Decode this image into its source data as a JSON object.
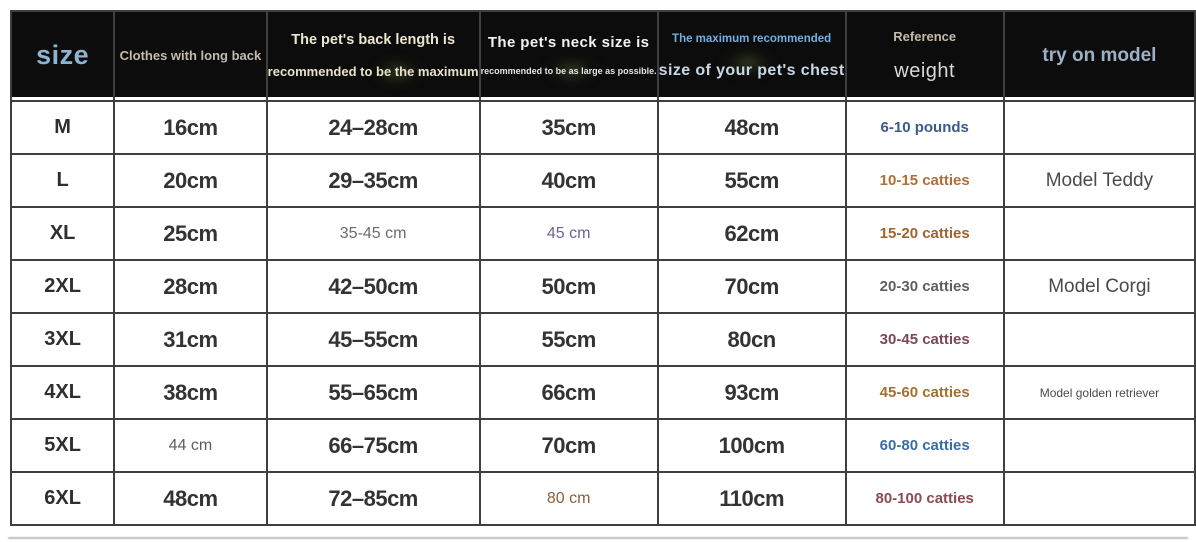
{
  "page": {
    "background": "#ffffff",
    "grid_line_color": "#3f3f3f",
    "header_background": "#0c0c0c"
  },
  "chart_data": {
    "type": "table",
    "title": "Pet clothing size chart",
    "columns": [
      "size",
      "Clothes with long back",
      "The pet's back length is recommended to be the maximum",
      "The pet's neck size is recommended to be as large as possible.",
      "The maximum recommended size of your pet's chest",
      "Reference weight",
      "try on model"
    ],
    "rows": [
      [
        "M",
        "16cm",
        "24–28cm",
        "35cm",
        "48cm",
        "6-10 pounds",
        ""
      ],
      [
        "L",
        "20cm",
        "29–35cm",
        "40cm",
        "55cm",
        "10-15 catties",
        "Model Teddy"
      ],
      [
        "XL",
        "25cm",
        "35-45 cm",
        "45 cm",
        "62cm",
        "15-20 catties",
        ""
      ],
      [
        "2XL",
        "28cm",
        "42–50cm",
        "50cm",
        "70cm",
        "20-30 catties",
        "Model Corgi"
      ],
      [
        "3XL",
        "31cm",
        "45–55cm",
        "55cm",
        "80cn",
        "30-45 catties",
        ""
      ],
      [
        "4XL",
        "38cm",
        "55–65cm",
        "66cm",
        "93cm",
        "45-60 catties",
        "Model golden retriever"
      ],
      [
        "5XL",
        "44 cm",
        "66–75cm",
        "70cm",
        "100cm",
        "60-80 catties",
        ""
      ],
      [
        "6XL",
        "48cm",
        "72–85cm",
        "80 cm",
        "110cm",
        "80-100 catties",
        ""
      ]
    ]
  },
  "table": {
    "columns": [
      {
        "id": "size",
        "lines": [
          {
            "text": "size",
            "cls": "h-size"
          }
        ]
      },
      {
        "id": "long-back",
        "lines": [
          {
            "text": "Clothes with long back",
            "cls": "h-tan"
          }
        ]
      },
      {
        "id": "back-length",
        "smudge": [
          62,
          68
        ],
        "lines": [
          {
            "text": "The pet's back length is",
            "cls": "h-cream"
          },
          {
            "text": "recommended to be the maximum",
            "cls": "h-cream-b"
          }
        ]
      },
      {
        "id": "neck",
        "smudge": [
          52,
          66
        ],
        "lines": [
          {
            "text": "The pet's neck size is",
            "cls": "h-white"
          },
          {
            "text": "recommended to be as large as possible.",
            "cls": "h-white-tiny"
          }
        ]
      },
      {
        "id": "chest",
        "smudge": [
          48,
          58
        ],
        "lines": [
          {
            "text": "The maximum recommended",
            "cls": "h-blue-sm"
          },
          {
            "text": "size of your pet's chest",
            "cls": "h-bluegrey"
          }
        ]
      },
      {
        "id": "weight",
        "lines": [
          {
            "text": "Reference",
            "cls": "h-tan"
          },
          {
            "text": "weight",
            "cls": "h-grey-big"
          }
        ]
      },
      {
        "id": "model",
        "lines": [
          {
            "text": "try on model",
            "cls": "h-model"
          }
        ]
      }
    ],
    "rows": [
      {
        "cells": [
          {
            "text": "M",
            "variant": "size"
          },
          {
            "text": "16cm",
            "variant": "big"
          },
          {
            "text": "24–28cm",
            "variant": "big"
          },
          {
            "text": "35cm",
            "variant": "big"
          },
          {
            "text": "48cm",
            "variant": "big"
          },
          {
            "text": "6-10 pounds",
            "variant": "weight",
            "color": "#3e5a8c"
          },
          {
            "text": "",
            "variant": "model"
          }
        ]
      },
      {
        "cells": [
          {
            "text": "L",
            "variant": "size"
          },
          {
            "text": "20cm",
            "variant": "big"
          },
          {
            "text": "29–35cm",
            "variant": "big"
          },
          {
            "text": "40cm",
            "variant": "big"
          },
          {
            "text": "55cm",
            "variant": "big"
          },
          {
            "text": "10-15 catties",
            "variant": "weight",
            "color": "#b06f35"
          },
          {
            "text": "Model Teddy",
            "variant": "model"
          }
        ]
      },
      {
        "cells": [
          {
            "text": "XL",
            "variant": "size"
          },
          {
            "text": "25cm",
            "variant": "big"
          },
          {
            "text": "35-45 cm",
            "variant": "small",
            "color": "#6b6b6b"
          },
          {
            "text": "45 cm",
            "variant": "small",
            "color": "#6e6292"
          },
          {
            "text": "62cm",
            "variant": "big"
          },
          {
            "text": "15-20 catties",
            "variant": "weight",
            "color": "#a2622d"
          },
          {
            "text": "",
            "variant": "model"
          }
        ]
      },
      {
        "cells": [
          {
            "text": "2XL",
            "variant": "size"
          },
          {
            "text": "28cm",
            "variant": "big"
          },
          {
            "text": "42–50cm",
            "variant": "big"
          },
          {
            "text": "50cm",
            "variant": "big"
          },
          {
            "text": "70cm",
            "variant": "big"
          },
          {
            "text": "20-30 catties",
            "variant": "weight",
            "color": "#5f5f5f"
          },
          {
            "text": "Model Corgi",
            "variant": "model"
          }
        ]
      },
      {
        "cells": [
          {
            "text": "3XL",
            "variant": "size"
          },
          {
            "text": "31cm",
            "variant": "big"
          },
          {
            "text": "45–55cm",
            "variant": "big"
          },
          {
            "text": "55cm",
            "variant": "big"
          },
          {
            "text": "80cn",
            "variant": "big"
          },
          {
            "text": "30-45 catties",
            "variant": "weight",
            "color": "#7d4757"
          },
          {
            "text": "",
            "variant": "model"
          }
        ]
      },
      {
        "cells": [
          {
            "text": "4XL",
            "variant": "size"
          },
          {
            "text": "38cm",
            "variant": "big"
          },
          {
            "text": "55–65cm",
            "variant": "big"
          },
          {
            "text": "66cm",
            "variant": "big"
          },
          {
            "text": "93cm",
            "variant": "big"
          },
          {
            "text": "45-60 catties",
            "variant": "weight",
            "color": "#a2702f"
          },
          {
            "text": "Model golden retriever",
            "variant": "model-small"
          }
        ]
      },
      {
        "cells": [
          {
            "text": "5XL",
            "variant": "size"
          },
          {
            "text": "44 cm",
            "variant": "small",
            "color": "#5f5f5f"
          },
          {
            "text": "66–75cm",
            "variant": "big"
          },
          {
            "text": "70cm",
            "variant": "big"
          },
          {
            "text": "100cm",
            "variant": "big"
          },
          {
            "text": "60-80 catties",
            "variant": "weight",
            "color": "#3c6ca8"
          },
          {
            "text": "",
            "variant": "model"
          }
        ]
      },
      {
        "cells": [
          {
            "text": "6XL",
            "variant": "size"
          },
          {
            "text": "48cm",
            "variant": "big"
          },
          {
            "text": "72–85cm",
            "variant": "big"
          },
          {
            "text": "80 cm",
            "variant": "small",
            "color": "#8a5f3a"
          },
          {
            "text": "110cm",
            "variant": "big"
          },
          {
            "text": "80-100 catties",
            "variant": "weight",
            "color": "#8c4a55"
          },
          {
            "text": "",
            "variant": "model"
          }
        ]
      }
    ]
  }
}
